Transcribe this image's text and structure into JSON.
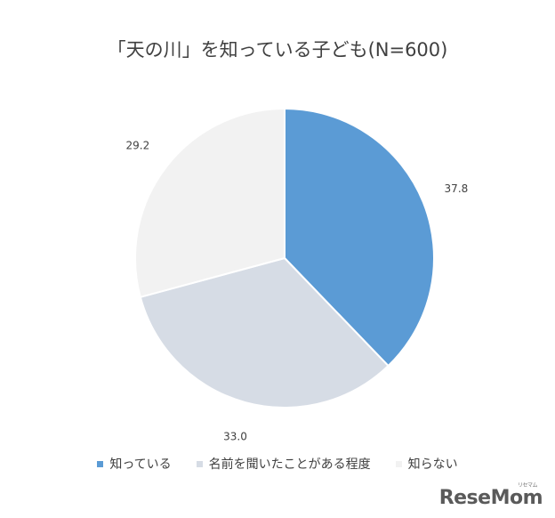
{
  "chart_data": {
    "type": "pie",
    "title": "「天の川」を知っている子ども(N=600)",
    "slices": [
      {
        "label": "知っている",
        "value": 37.8,
        "value_label": "37.8",
        "color": "#5b9bd5"
      },
      {
        "label": "名前を聞いたことがある程度",
        "value": 33.0,
        "value_label": "33.0",
        "color": "#d6dce5"
      },
      {
        "label": "知らない",
        "value": 29.2,
        "value_label": "29.2",
        "color": "#f2f2f2"
      }
    ],
    "legend_position": "bottom",
    "start_angle": "12-o'clock",
    "direction": "clockwise"
  },
  "logo": {
    "text": "ReseMom",
    "kana": "リセマム"
  }
}
